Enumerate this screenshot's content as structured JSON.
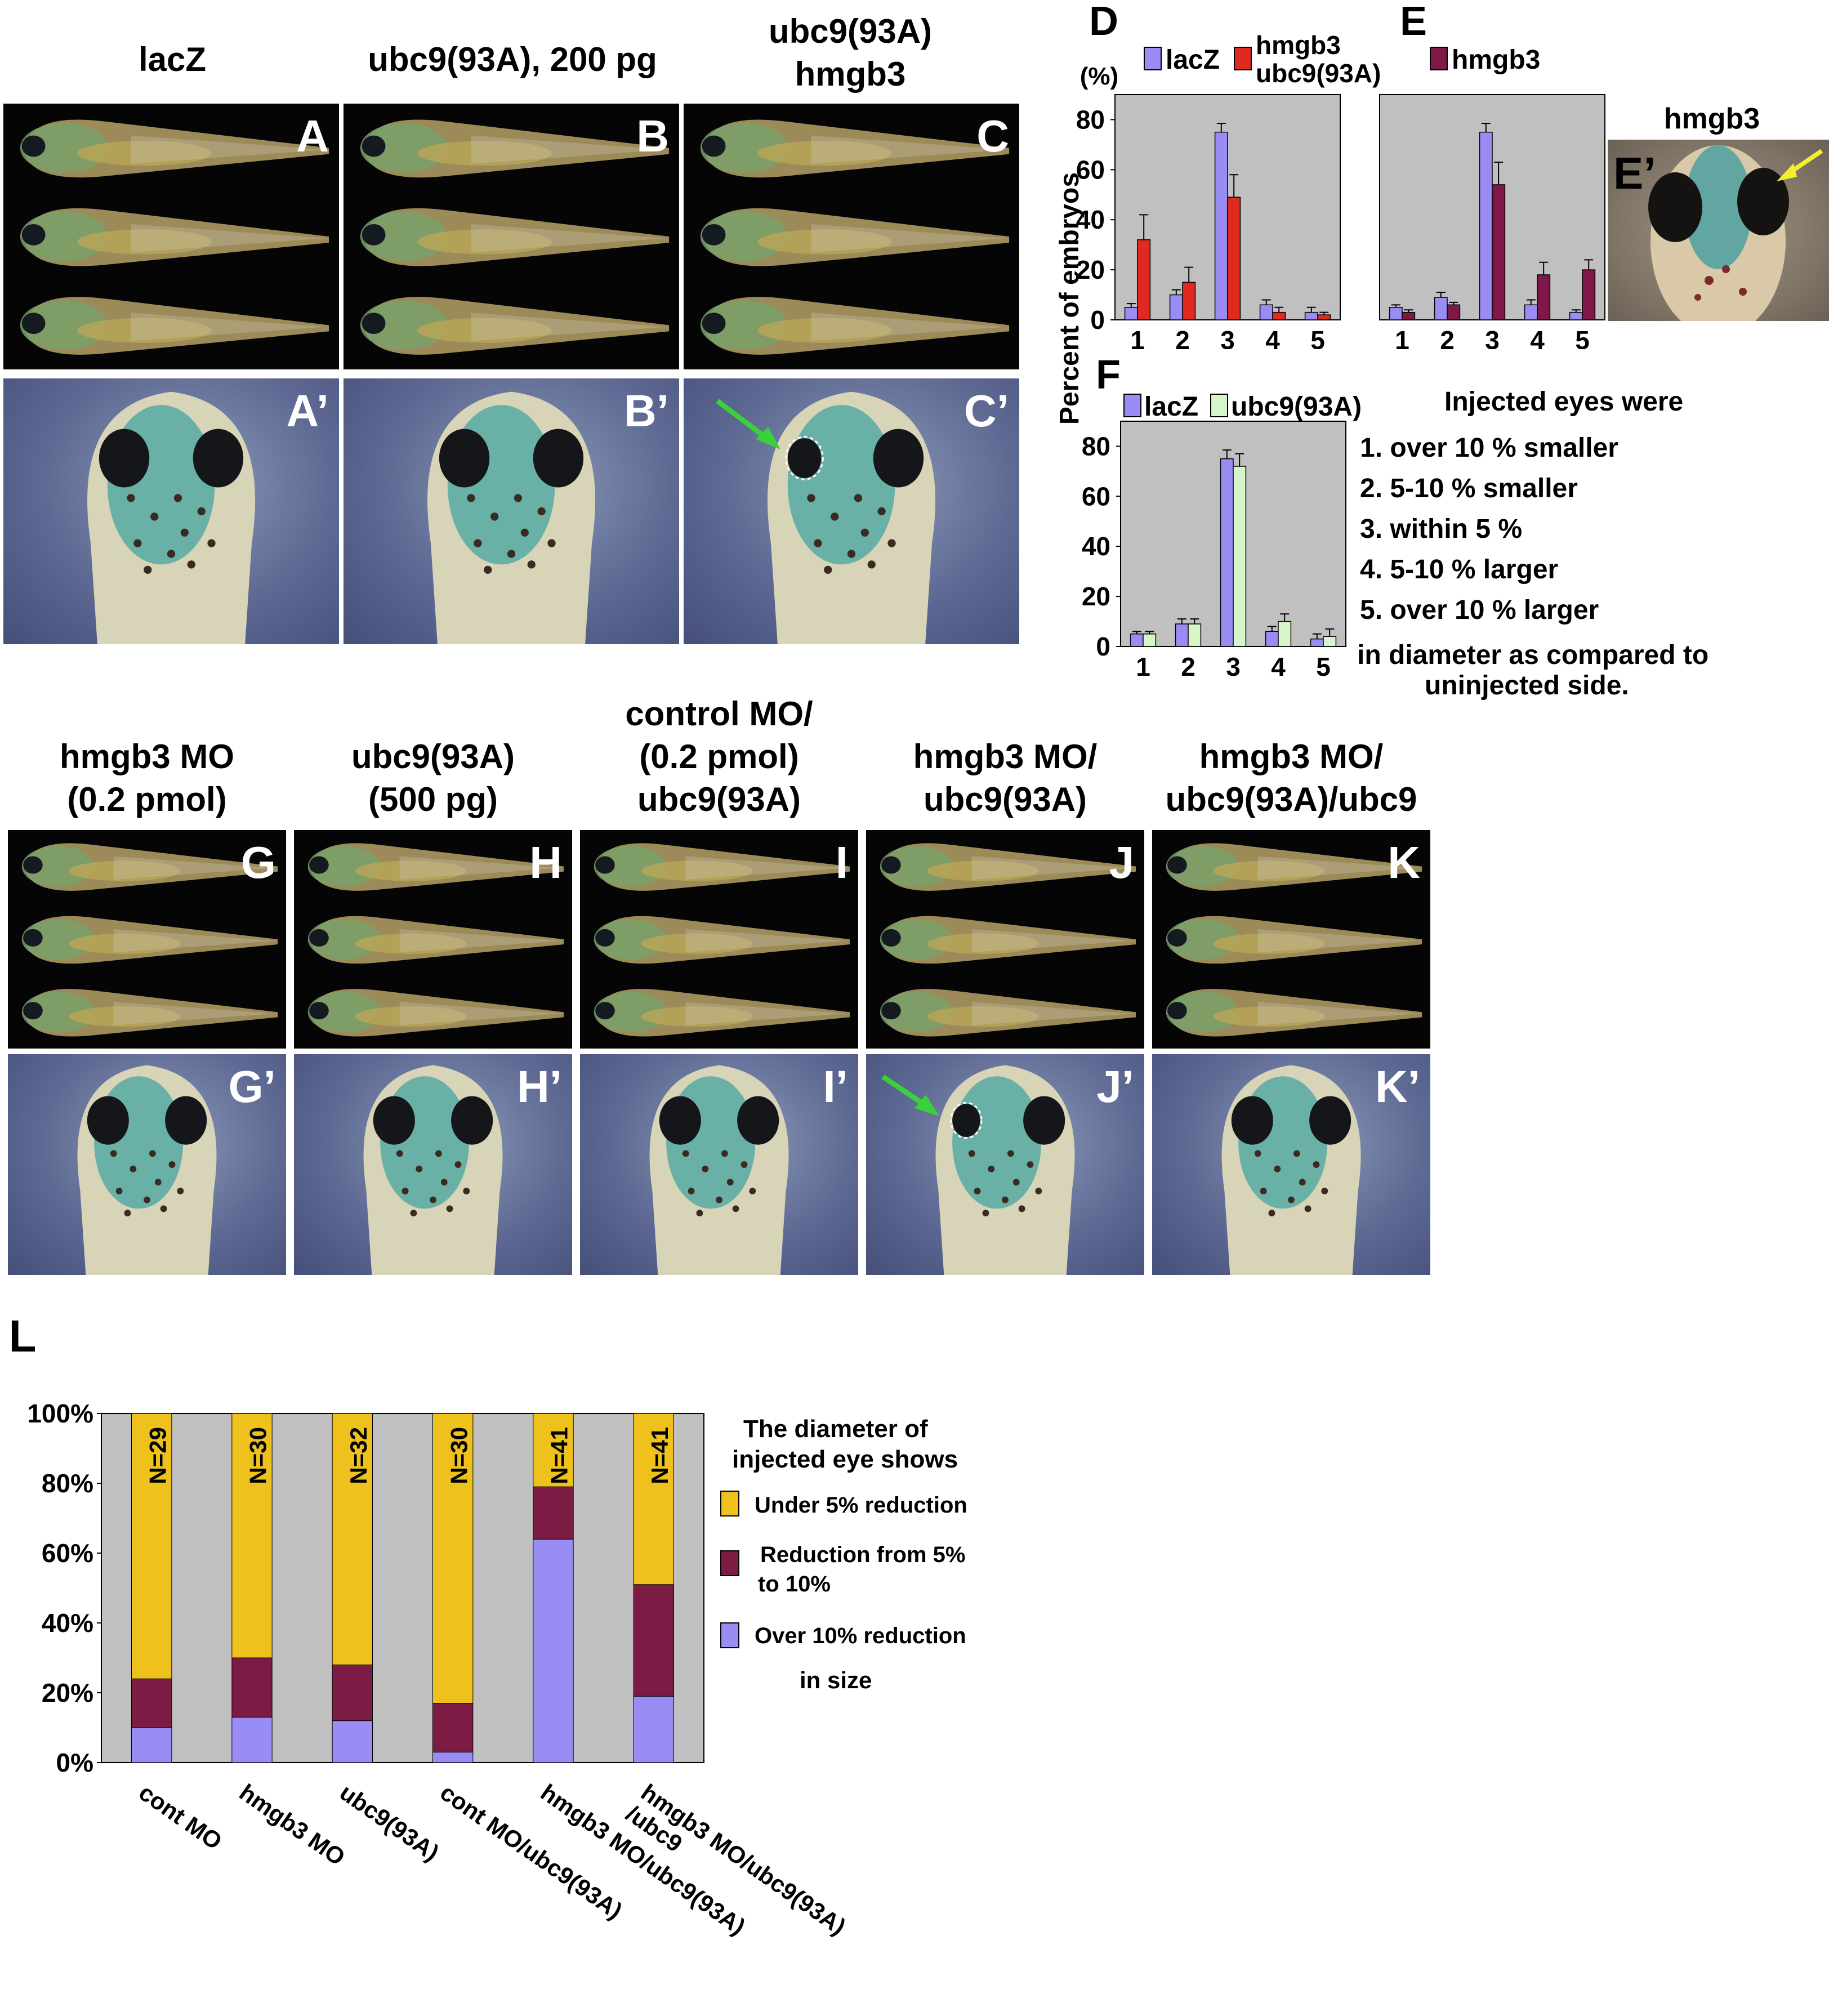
{
  "top_titles": {
    "col1": "lacZ",
    "col2": "ubc9(93A), 200 pg",
    "col3_line1": "ubc9(93A)",
    "col3_line2": "hmgb3"
  },
  "top_panel_labels": [
    "A",
    "B",
    "C"
  ],
  "top_head_labels": [
    "A’",
    "B’",
    "C’"
  ],
  "e_prime": {
    "title": "hmgb3",
    "label": "E’"
  },
  "bottom_titles": {
    "G": [
      "hmgb3 MO",
      "(0.2 pmol)"
    ],
    "H": [
      "ubc9(93A)",
      "(500 pg)"
    ],
    "I": [
      "control MO/",
      "(0.2 pmol)",
      "ubc9(93A)"
    ],
    "J": [
      "hmgb3 MO/",
      "ubc9(93A)"
    ],
    "K": [
      "hmgb3 MO/",
      "ubc9(93A)/ubc9"
    ]
  },
  "bottom_panel_labels": [
    "G",
    "H",
    "I",
    "J",
    "K"
  ],
  "bottom_head_labels": [
    "G’",
    "H’",
    "I’",
    "J’",
    "K’"
  ],
  "shared_ylabel": "Percent of embryos",
  "chart_d_unit": "(%)",
  "colors": {
    "lacz": "#9a8cf5",
    "hmgb3_ubc9": "#e02a20",
    "hmgb3": "#7e1848",
    "ubc9_93a": "#d6f5c8",
    "under5": "#efc11c",
    "from5to10": "#7c1c44",
    "over10": "#9a8cf5",
    "plot_bg": "#c0c0c0",
    "arrow_green": "#39d23c",
    "arrow_yellow": "#f3ef2a"
  },
  "chart_data": [
    {
      "id": "D",
      "type": "bar",
      "panel_label": "D",
      "categories": [
        "1",
        "2",
        "3",
        "4",
        "5"
      ],
      "ylim": [
        0,
        90
      ],
      "yticks": [
        "0",
        "20",
        "40",
        "60",
        "80"
      ],
      "series": [
        {
          "name": "lacZ",
          "values": [
            5,
            10,
            75,
            6,
            3
          ],
          "errors": [
            1.5,
            2,
            3.5,
            2,
            2
          ]
        },
        {
          "name_line1": "hmgb3",
          "name_line2": "ubc9(93A)",
          "values": [
            32,
            15,
            49,
            3,
            2
          ],
          "errors": [
            10,
            6,
            9,
            2,
            1
          ]
        }
      ]
    },
    {
      "id": "E",
      "type": "bar",
      "panel_label": "E",
      "categories": [
        "1",
        "2",
        "3",
        "4",
        "5"
      ],
      "ylim": [
        0,
        90
      ],
      "series": [
        {
          "name": "lacZ",
          "values": [
            5,
            9,
            75,
            6,
            3
          ],
          "errors": [
            1,
            2,
            3.5,
            2,
            1
          ]
        },
        {
          "name": "hmgb3",
          "values": [
            3,
            6,
            54,
            18,
            20
          ],
          "errors": [
            1,
            1,
            9,
            5,
            4
          ]
        }
      ]
    },
    {
      "id": "F",
      "type": "bar",
      "panel_label": "F",
      "categories": [
        "1",
        "2",
        "3",
        "4",
        "5"
      ],
      "ylim": [
        0,
        90
      ],
      "yticks": [
        "0",
        "20",
        "40",
        "60",
        "80"
      ],
      "series": [
        {
          "name": "lacZ",
          "values": [
            5,
            9,
            75,
            6,
            3
          ],
          "errors": [
            1,
            2,
            3.5,
            2,
            2
          ]
        },
        {
          "name": "ubc9(93A)",
          "values": [
            5,
            9,
            72,
            10,
            4
          ],
          "errors": [
            1,
            2,
            5,
            3,
            3
          ]
        }
      ],
      "legend_text": {
        "title": "Injected eyes were",
        "items": [
          "1. over 10 % smaller",
          "2. 5-10 % smaller",
          "3. within  5 %",
          "4. 5-10 % larger",
          "5. over 10 % larger"
        ],
        "footer_line1": "in diameter as compared to",
        "footer_line2": "uninjected side."
      }
    },
    {
      "id": "L",
      "type": "bar",
      "stacked": true,
      "panel_label": "L",
      "categories": [
        "cont MO",
        "hmgb3 MO",
        "ubc9(93A)",
        "cont MO/ubc9(93A)",
        "hmgb3 MO/ubc9(93A)",
        "hmgb3 MO/ubc9(93A)\n/ubc9"
      ],
      "category_lines": [
        [
          "cont MO"
        ],
        [
          "hmgb3 MO"
        ],
        [
          "ubc9(93A)"
        ],
        [
          "cont MO/ubc9(93A)"
        ],
        [
          "hmgb3 MO/ubc9(93A)"
        ],
        [
          "hmgb3 MO/ubc9(93A)",
          "/ubc9"
        ]
      ],
      "ylim": [
        0,
        100
      ],
      "yticks": [
        "0%",
        "20%",
        "40%",
        "60%",
        "80%",
        "100%"
      ],
      "n_labels": [
        "N=29",
        "N=30",
        "N=32",
        "N=30",
        "N=41",
        "N=41"
      ],
      "series": [
        {
          "name": "Over 10% reduction",
          "values": [
            10,
            13,
            12,
            3,
            64,
            19
          ]
        },
        {
          "name": "Reduction from 5% to 10%",
          "name_line1": "Reduction from 5%",
          "name_line2": "to 10%",
          "values": [
            14,
            17,
            16,
            14,
            15,
            32
          ]
        },
        {
          "name": "Under 5% reduction",
          "values": [
            76,
            70,
            72,
            83,
            21,
            49
          ]
        }
      ],
      "legend_title_line1": "The diameter of",
      "legend_title_line2": "injected eye shows",
      "legend_footer": "in size"
    }
  ]
}
